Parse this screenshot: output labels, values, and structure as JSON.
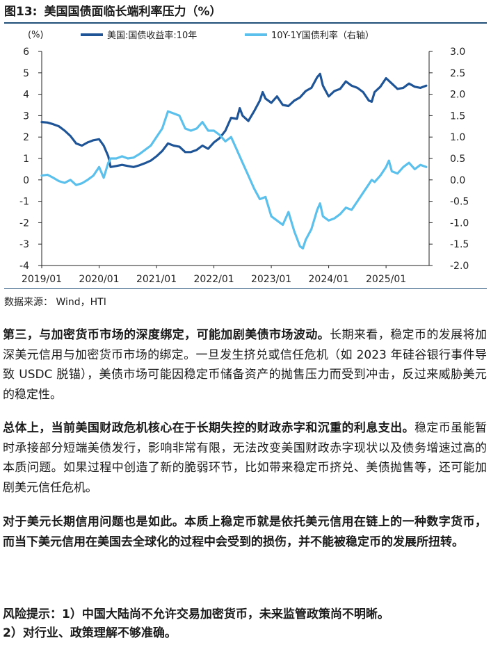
{
  "figure": {
    "number": "图13:",
    "title": "美国国债面临长端利率压力（%）",
    "source": "数据来源： Wind，HTI"
  },
  "chart_data": {
    "type": "line",
    "left_unit_label": "(%)",
    "left_axis": {
      "range": [
        -4,
        6
      ],
      "ticks": [
        "6",
        "5",
        "4",
        "3",
        "2",
        "1",
        "0",
        "-1",
        "-2",
        "-3",
        "-4"
      ]
    },
    "right_axis": {
      "range": [
        -2.0,
        3.0
      ],
      "ticks": [
        "3.0",
        "2.5",
        "2.0",
        "1.5",
        "1.0",
        "0.5",
        "0.0",
        "-0.5",
        "-1.0",
        "-1.5",
        "-2.0"
      ]
    },
    "x_labels": [
      "2019/01",
      "2020/01",
      "2021/01",
      "2022/01",
      "2023/01",
      "2024/01",
      "2025/01"
    ],
    "x_range": [
      2019.0,
      2025.75
    ],
    "series": [
      {
        "name": "美国:国债收益率:10年",
        "axis": "left",
        "color": "#1f5597",
        "points": [
          [
            2019.0,
            2.7
          ],
          [
            2019.1,
            2.68
          ],
          [
            2019.2,
            2.6
          ],
          [
            2019.3,
            2.5
          ],
          [
            2019.4,
            2.3
          ],
          [
            2019.5,
            2.05
          ],
          [
            2019.6,
            1.7
          ],
          [
            2019.7,
            1.6
          ],
          [
            2019.8,
            1.75
          ],
          [
            2019.9,
            1.85
          ],
          [
            2020.0,
            1.9
          ],
          [
            2020.08,
            1.6
          ],
          [
            2020.16,
            1.1
          ],
          [
            2020.2,
            0.6
          ],
          [
            2020.3,
            0.65
          ],
          [
            2020.4,
            0.7
          ],
          [
            2020.5,
            0.65
          ],
          [
            2020.6,
            0.6
          ],
          [
            2020.7,
            0.68
          ],
          [
            2020.8,
            0.78
          ],
          [
            2020.9,
            0.9
          ],
          [
            2021.0,
            1.1
          ],
          [
            2021.1,
            1.35
          ],
          [
            2021.2,
            1.7
          ],
          [
            2021.3,
            1.6
          ],
          [
            2021.4,
            1.55
          ],
          [
            2021.5,
            1.3
          ],
          [
            2021.6,
            1.3
          ],
          [
            2021.7,
            1.4
          ],
          [
            2021.8,
            1.6
          ],
          [
            2021.9,
            1.45
          ],
          [
            2022.0,
            1.75
          ],
          [
            2022.1,
            1.95
          ],
          [
            2022.2,
            2.3
          ],
          [
            2022.3,
            2.9
          ],
          [
            2022.4,
            2.85
          ],
          [
            2022.45,
            3.35
          ],
          [
            2022.5,
            3.0
          ],
          [
            2022.6,
            2.75
          ],
          [
            2022.7,
            3.2
          ],
          [
            2022.8,
            3.7
          ],
          [
            2022.85,
            4.1
          ],
          [
            2022.9,
            3.8
          ],
          [
            2023.0,
            3.6
          ],
          [
            2023.1,
            3.9
          ],
          [
            2023.2,
            3.5
          ],
          [
            2023.3,
            3.45
          ],
          [
            2023.4,
            3.7
          ],
          [
            2023.5,
            3.85
          ],
          [
            2023.6,
            4.15
          ],
          [
            2023.7,
            4.3
          ],
          [
            2023.8,
            4.8
          ],
          [
            2023.85,
            4.95
          ],
          [
            2023.9,
            4.4
          ],
          [
            2024.0,
            3.9
          ],
          [
            2024.1,
            4.15
          ],
          [
            2024.2,
            4.25
          ],
          [
            2024.3,
            4.6
          ],
          [
            2024.4,
            4.4
          ],
          [
            2024.5,
            4.3
          ],
          [
            2024.6,
            4.1
          ],
          [
            2024.7,
            3.7
          ],
          [
            2024.75,
            3.65
          ],
          [
            2024.8,
            4.1
          ],
          [
            2024.9,
            4.35
          ],
          [
            2025.0,
            4.75
          ],
          [
            2025.1,
            4.5
          ],
          [
            2025.2,
            4.25
          ],
          [
            2025.3,
            4.3
          ],
          [
            2025.4,
            4.5
          ],
          [
            2025.5,
            4.35
          ],
          [
            2025.6,
            4.3
          ],
          [
            2025.7,
            4.4
          ]
        ]
      },
      {
        "name": "10Y-1Y国债利率（右轴）",
        "axis": "right",
        "color": "#5bc0eb",
        "points": [
          [
            2019.0,
            0.1
          ],
          [
            2019.1,
            0.12
          ],
          [
            2019.2,
            0.05
          ],
          [
            2019.3,
            -0.03
          ],
          [
            2019.4,
            -0.07
          ],
          [
            2019.5,
            0.0
          ],
          [
            2019.6,
            -0.12
          ],
          [
            2019.7,
            -0.08
          ],
          [
            2019.8,
            0.0
          ],
          [
            2019.9,
            0.1
          ],
          [
            2020.0,
            0.3
          ],
          [
            2020.08,
            0.05
          ],
          [
            2020.16,
            0.4
          ],
          [
            2020.2,
            0.5
          ],
          [
            2020.3,
            0.5
          ],
          [
            2020.4,
            0.55
          ],
          [
            2020.5,
            0.5
          ],
          [
            2020.6,
            0.52
          ],
          [
            2020.7,
            0.6
          ],
          [
            2020.8,
            0.7
          ],
          [
            2020.9,
            0.8
          ],
          [
            2021.0,
            1.0
          ],
          [
            2021.1,
            1.2
          ],
          [
            2021.2,
            1.6
          ],
          [
            2021.3,
            1.55
          ],
          [
            2021.4,
            1.5
          ],
          [
            2021.5,
            1.2
          ],
          [
            2021.6,
            1.15
          ],
          [
            2021.7,
            1.2
          ],
          [
            2021.8,
            1.35
          ],
          [
            2021.9,
            1.15
          ],
          [
            2022.0,
            1.15
          ],
          [
            2022.1,
            1.05
          ],
          [
            2022.2,
            0.9
          ],
          [
            2022.3,
            1.0
          ],
          [
            2022.4,
            0.7
          ],
          [
            2022.5,
            0.4
          ],
          [
            2022.6,
            0.1
          ],
          [
            2022.7,
            -0.2
          ],
          [
            2022.8,
            -0.45
          ],
          [
            2022.9,
            -0.4
          ],
          [
            2023.0,
            -0.85
          ],
          [
            2023.1,
            -0.95
          ],
          [
            2023.2,
            -1.05
          ],
          [
            2023.3,
            -0.75
          ],
          [
            2023.4,
            -1.2
          ],
          [
            2023.5,
            -1.55
          ],
          [
            2023.55,
            -1.6
          ],
          [
            2023.6,
            -1.4
          ],
          [
            2023.7,
            -1.15
          ],
          [
            2023.8,
            -0.7
          ],
          [
            2023.85,
            -0.55
          ],
          [
            2023.9,
            -0.85
          ],
          [
            2024.0,
            -0.95
          ],
          [
            2024.1,
            -0.9
          ],
          [
            2024.2,
            -0.8
          ],
          [
            2024.3,
            -0.65
          ],
          [
            2024.4,
            -0.7
          ],
          [
            2024.5,
            -0.5
          ],
          [
            2024.6,
            -0.3
          ],
          [
            2024.7,
            -0.1
          ],
          [
            2024.75,
            0.0
          ],
          [
            2024.8,
            -0.05
          ],
          [
            2024.9,
            0.1
          ],
          [
            2025.0,
            0.3
          ],
          [
            2025.05,
            0.45
          ],
          [
            2025.1,
            0.2
          ],
          [
            2025.2,
            0.15
          ],
          [
            2025.3,
            0.3
          ],
          [
            2025.4,
            0.4
          ],
          [
            2025.5,
            0.25
          ],
          [
            2025.6,
            0.35
          ],
          [
            2025.7,
            0.3
          ]
        ]
      }
    ]
  },
  "paragraphs": {
    "p1_bold": "第三，与加密货币市场的深度绑定，可能加剧美债市场波动。",
    "p1_text": "长期来看，稳定币的发展将加深美元信用与加密货币市场的绑定。一旦发生挤兑或信任危机（如 2023 年硅谷银行事件导致 USDC 脱锚），美债市场可能因稳定币储备资产的抛售压力而受到冲击，反过来威胁美元的稳定性。",
    "p2_bold": "总体上，当前美国财政危机核心在于长期失控的财政赤字和沉重的利息支出。",
    "p2_text": "稳定币虽能暂时承接部分短端美债发行，影响非常有限，无法改变美国财政赤字现状以及债务增速过高的本质问题。如果过程中创造了新的脆弱环节，比如带来稳定币挤兑、美债抛售等，还可能加剧美元信任危机。",
    "p3_bold": "对于美元长期信用问题也是如此。本质上稳定币就是依托美元信用在链上的一种数字货币，而当下美元信用在美国去全球化的过程中会受到的损伤，并不能被稳定币的发展所扭转。",
    "p4_line1": "风险提示：1）中国大陆尚不允许交易加密货币，未来监管政策尚不明晰。",
    "p4_line2": "2）对行业、政策理解不够准确。"
  }
}
